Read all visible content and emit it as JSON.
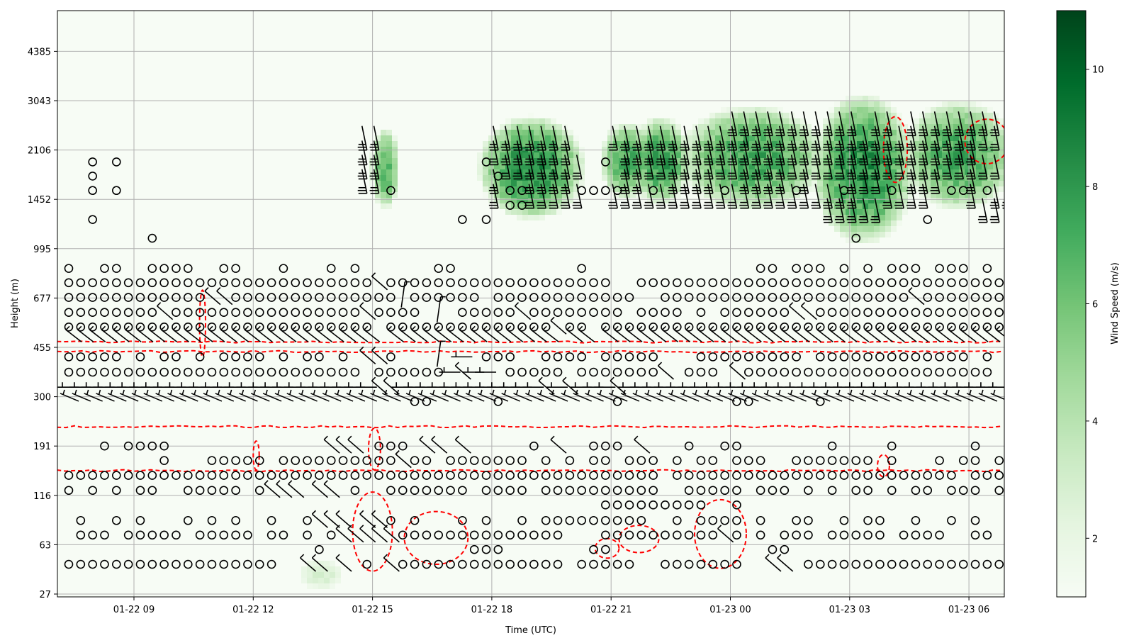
{
  "chart_data": {
    "type": "heatmap",
    "title": "",
    "xlabel": "Time (UTC)",
    "ylabel": "Height (m)",
    "x_range_hours": [
      7.07,
      30.89
    ],
    "x_ticks": [
      {
        "label": "01-22 09",
        "hour": 9
      },
      {
        "label": "01-22 12",
        "hour": 12
      },
      {
        "label": "01-22 15",
        "hour": 15
      },
      {
        "label": "01-22 18",
        "hour": 18
      },
      {
        "label": "01-22 21",
        "hour": 21
      },
      {
        "label": "01-23 00",
        "hour": 24
      },
      {
        "label": "01-23 03",
        "hour": 27
      },
      {
        "label": "01-23 06",
        "hour": 30
      }
    ],
    "y_ticks": [
      "27",
      "63",
      "116",
      "191",
      "300",
      "455",
      "677",
      "995",
      "1452",
      "2106",
      "3043",
      "4385"
    ],
    "y_range_m": [
      26,
      5900
    ],
    "grid": true,
    "colorbar": {
      "label": "Wind Speed (m/s)",
      "range": [
        1,
        11
      ],
      "ticks": [
        "2",
        "4",
        "6",
        "8",
        "10"
      ],
      "colormap": [
        "#f7fcf5",
        "#e5f5e0",
        "#c7e9c0",
        "#a1d99b",
        "#74c476",
        "#41ab5d",
        "#238b45",
        "#006d2c",
        "#00441b"
      ]
    },
    "obs_start_hour": 7.36,
    "obs_step_hour": 0.3,
    "symbol_legend": {
      "o": "calm",
      "d": "NW barb",
      "x": "calm + NW barb",
      "h": "W barb",
      "s": "WNW barb",
      "v": "N barb",
      "u": "strong N barb"
    },
    "obs_rows": [
      {
        "h": 2395,
        "s": "........................................................uuuuuuuuuuu.uu.uuuuuuuu"
      },
      {
        "h": 2150,
        "s": ".........................uu.........uuuuuuu...uuuuuuuuuuuuuuuuuuuuuuuuuuuuuuuuu"
      },
      {
        "h": 1925,
        "s": "..o.o....................uu........ouuuuuuu..o.uuuuuuuuuuuuuuuuuuuuuuuuuuuuuu"
      },
      {
        "h": 1730,
        "s": "..o......................uu.........ouuuuuuu...uuuuuuuuuuuuuuuuuuuuuuuuuuuuuuuu"
      },
      {
        "h": 1552,
        "s": "..o.o....................uuo........uoouuuuoooouuo.uuuuo.uuuuou..ouuuo.uuuoouo"
      },
      {
        "h": 1387,
        "s": "....................................uoouuuuu..uuuuuuuuuuuuuuuuuuuuu..uuuu...u.uu"
      },
      {
        "h": 1244,
        "s": "..o..............................o.o............................uuuuu...o....uu"
      },
      {
        "h": 1078,
        "s": ".......o..........................................................o............"
      },
      {
        "h": 853,
        "s": "o..oo..oooo..oo...o...o.o......oo..........o..............oo.ooo.o.o.ooo.ooo.o"
      },
      {
        "h": 763,
        "s": "oooooooooooooooooooooooooodooooooooooooooooooo..ooooooooooooooooooooooooooooooo"
      },
      {
        "h": 680,
        "s": "ooooooooooooddoooooooooooooovoooooo.oooooooooooo..ooooooooooooooooooooodoooooooo"
      },
      {
        "h": 603,
        "s": "oooooooodoooooooooooooooodoooo.v.ooooodoooooooo.oooo.o.ooooooddoooooooooooooooo"
      },
      {
        "h": 536,
        "s": "xxxxxxxxxxxxxxxxxxxxxxxxxx.xxxxxxxxxxxxxxdxx.xxxxxxxxxxxxxxxxxxxxxxxxxxxxxxxxxxx"
      },
      {
        "h": 420,
        "s": "ooooo.o.oo.o.oooo.o.oo.o.ddo...v.h.ooo..oooo.ooooo...ooooooooo.ooooooooooooo.o"
      },
      {
        "h": 369,
        "s": "ooooooooooooooooooooooooo.oooooohdhh.ooooo.oooooood.ooo.dooooooooooooooooooooo"
      },
      {
        "h": 325,
        "s": "hhhhhhhhhhhhhhhhhhhhhhhhhhddhhhhhhhhhhhhdhdhhhdhhhhhhhhhhhhhhhhhhhhhhhhhhhhhhhh"
      },
      {
        "h": 303,
        "s": "sssssssssssssssssssssssssssssssssssssssssssssssssssssssssssssssssssssssssssssss"
      },
      {
        "h": 287,
        "s": ".............................oo.....o.........o.........oo.....o..............."
      },
      {
        "h": 191,
        "s": "...o.oooo.............ddd.ooo.dd.d.....o.d..ooo.d...o..oo.......o....o......o.."
      },
      {
        "h": 165,
        "s": "........o...ooooo.oooooooooodoo.ooooooo.o.o.oo.ooo.o.oo.ooo..ooooooo.o...o.oo.oo"
      },
      {
        "h": 142,
        "s": "oooooooooooooooooooooooooooooooooooooooooooooooooo.oooooooooooooooooooooooo.oooo"
      },
      {
        "h": 122,
        "s": "o.o.o.oo..ooooo.oddd.dd.o..ooooooo.oooo.oooooooooo..ooooo.ooo.o.o.oo.o.oo.ooo.oo"
      },
      {
        "h": 103,
        "s": ".............................................ooooooooo..o........................"
      },
      {
        "h": 85,
        "s": ".o..o.o...o.o.o..o..oddd.ddo.o...o.o..o.ooooooooo..o.oooo.o..oo..o.oo..o..o.o"
      },
      {
        "h": 71,
        "s": ".ooo.ooooo.ooooo.oo.o.odddddoooooooooooooo...oooooooooodo.o.ooo.ooooo.oooo..oo"
      },
      {
        "h": 58,
        "s": ".....................o............ooo.......oo.............oo...................."
      },
      {
        "h": 45,
        "s": "oooooooooooooooooo..dd.d.o.doooooooooooooo.ooooo..ooooooo..dd.oooooooooooooooooo"
      }
    ],
    "wind_speed_blobs": [
      {
        "t0": 15.0,
        "t1": 15.65,
        "h0": 1400,
        "h1": 2400,
        "peak": 7
      },
      {
        "t0": 17.8,
        "t1": 20.2,
        "h0": 1300,
        "h1": 2600,
        "peak": 8.5
      },
      {
        "t0": 20.8,
        "t1": 22.0,
        "h0": 1500,
        "h1": 2500,
        "peak": 7.5
      },
      {
        "t0": 21.6,
        "t1": 22.9,
        "h0": 1450,
        "h1": 2600,
        "peak": 8
      },
      {
        "t0": 22.9,
        "t1": 26.2,
        "h0": 1400,
        "h1": 2800,
        "peak": 7.5
      },
      {
        "t0": 26.2,
        "t1": 28.5,
        "h0": 1100,
        "h1": 3000,
        "peak": 8.5
      },
      {
        "t0": 28.5,
        "t1": 31.0,
        "h0": 1400,
        "h1": 2900,
        "peak": 7.5
      },
      {
        "t0": 13.2,
        "t1": 14.2,
        "h0": 30,
        "h1": 48,
        "peak": 3
      }
    ],
    "contour_lines_m": [
      475,
      439,
      228,
      149
    ],
    "contour_loops": [
      {
        "t0": 14.5,
        "t1": 15.5,
        "h0": 40,
        "h1": 120
      },
      {
        "t0": 15.8,
        "t1": 17.4,
        "h0": 45,
        "h1": 95
      },
      {
        "t0": 20.6,
        "t1": 21.2,
        "h0": 50,
        "h1": 68
      },
      {
        "t0": 21.2,
        "t1": 22.2,
        "h0": 55,
        "h1": 80
      },
      {
        "t0": 23.1,
        "t1": 24.4,
        "h0": 42,
        "h1": 110
      },
      {
        "t0": 14.9,
        "t1": 15.2,
        "h0": 150,
        "h1": 225
      },
      {
        "t0": 12.0,
        "t1": 12.15,
        "h0": 150,
        "h1": 200
      },
      {
        "t0": 10.65,
        "t1": 10.8,
        "h0": 420,
        "h1": 720
      },
      {
        "t0": 27.85,
        "t1": 28.45,
        "h0": 1650,
        "h1": 2700
      },
      {
        "t0": 29.9,
        "t1": 31.0,
        "h0": 1900,
        "h1": 2650
      },
      {
        "t0": 27.7,
        "t1": 28.0,
        "h0": 140,
        "h1": 175
      }
    ]
  }
}
